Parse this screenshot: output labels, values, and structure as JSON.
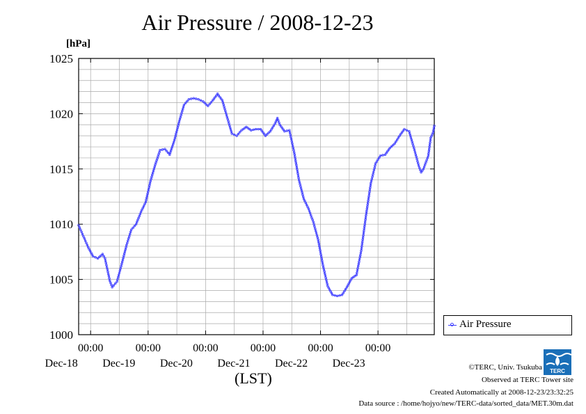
{
  "chart_data": {
    "type": "line",
    "title": "Air Pressure / 2008-12-23",
    "ylabel": "[hPa]",
    "xlabel": "(LST)",
    "ylim": [
      1000,
      1025
    ],
    "yticks": [
      "1000",
      "1005",
      "1010",
      "1015",
      "1020",
      "1025"
    ],
    "xlim": [
      "2008-12-17T19:00",
      "2008-12-23T23:30"
    ],
    "xticks": [
      {
        "time": "00:00",
        "day": "Dec-18",
        "x": "2008-12-18T00:00"
      },
      {
        "time": "00:00",
        "day": "Dec-19",
        "x": "2008-12-19T00:00"
      },
      {
        "time": "00:00",
        "day": "Dec-20",
        "x": "2008-12-20T00:00"
      },
      {
        "time": "00:00",
        "day": "Dec-21",
        "x": "2008-12-21T00:00"
      },
      {
        "time": "00:00",
        "day": "Dec-22",
        "x": "2008-12-22T00:00"
      },
      {
        "time": "00:00",
        "day": "Dec-23",
        "x": "2008-12-23T00:00"
      }
    ],
    "grid": true,
    "legend_position": "right",
    "series": [
      {
        "name": "Air Pressure",
        "color": "#3b3bff",
        "points": [
          [
            "2008-12-17T19:00",
            1009.9
          ],
          [
            "2008-12-17T21:00",
            1008.9
          ],
          [
            "2008-12-17T23:00",
            1007.9
          ],
          [
            "2008-12-18T01:00",
            1007.1
          ],
          [
            "2008-12-18T03:00",
            1006.9
          ],
          [
            "2008-12-18T05:00",
            1007.3
          ],
          [
            "2008-12-18T06:00",
            1006.9
          ],
          [
            "2008-12-18T07:00",
            1005.9
          ],
          [
            "2008-12-18T08:00",
            1004.9
          ],
          [
            "2008-12-18T09:00",
            1004.3
          ],
          [
            "2008-12-18T11:00",
            1004.8
          ],
          [
            "2008-12-18T13:00",
            1006.4
          ],
          [
            "2008-12-18T15:00",
            1008.1
          ],
          [
            "2008-12-18T17:00",
            1009.5
          ],
          [
            "2008-12-18T19:00",
            1010.0
          ],
          [
            "2008-12-18T21:00",
            1011.1
          ],
          [
            "2008-12-18T23:00",
            1012.0
          ],
          [
            "2008-12-19T01:00",
            1013.9
          ],
          [
            "2008-12-19T03:00",
            1015.4
          ],
          [
            "2008-12-19T05:00",
            1016.7
          ],
          [
            "2008-12-19T07:00",
            1016.8
          ],
          [
            "2008-12-19T09:00",
            1016.3
          ],
          [
            "2008-12-19T11:00",
            1017.6
          ],
          [
            "2008-12-19T13:00",
            1019.3
          ],
          [
            "2008-12-19T15:00",
            1020.8
          ],
          [
            "2008-12-19T17:00",
            1021.3
          ],
          [
            "2008-12-19T19:00",
            1021.4
          ],
          [
            "2008-12-19T21:00",
            1021.3
          ],
          [
            "2008-12-19T23:00",
            1021.1
          ],
          [
            "2008-12-20T01:00",
            1020.7
          ],
          [
            "2008-12-20T03:00",
            1021.2
          ],
          [
            "2008-12-20T05:00",
            1021.8
          ],
          [
            "2008-12-20T07:00",
            1021.2
          ],
          [
            "2008-12-20T09:00",
            1019.7
          ],
          [
            "2008-12-20T11:00",
            1018.2
          ],
          [
            "2008-12-20T13:00",
            1018.0
          ],
          [
            "2008-12-20T15:00",
            1018.5
          ],
          [
            "2008-12-20T17:00",
            1018.8
          ],
          [
            "2008-12-20T19:00",
            1018.5
          ],
          [
            "2008-12-20T21:00",
            1018.6
          ],
          [
            "2008-12-20T23:00",
            1018.6
          ],
          [
            "2008-12-21T01:00",
            1018.0
          ],
          [
            "2008-12-21T03:00",
            1018.4
          ],
          [
            "2008-12-21T05:00",
            1019.1
          ],
          [
            "2008-12-21T06:00",
            1019.6
          ],
          [
            "2008-12-21T07:00",
            1019.0
          ],
          [
            "2008-12-21T09:00",
            1018.4
          ],
          [
            "2008-12-21T11:00",
            1018.5
          ],
          [
            "2008-12-21T13:00",
            1016.5
          ],
          [
            "2008-12-21T15:00",
            1014.0
          ],
          [
            "2008-12-21T17:00",
            1012.3
          ],
          [
            "2008-12-21T19:00",
            1011.4
          ],
          [
            "2008-12-21T21:00",
            1010.2
          ],
          [
            "2008-12-21T23:00",
            1008.6
          ],
          [
            "2008-12-22T01:00",
            1006.3
          ],
          [
            "2008-12-22T03:00",
            1004.4
          ],
          [
            "2008-12-22T05:00",
            1003.6
          ],
          [
            "2008-12-22T07:00",
            1003.5
          ],
          [
            "2008-12-22T09:00",
            1003.6
          ],
          [
            "2008-12-22T11:00",
            1004.3
          ],
          [
            "2008-12-22T13:00",
            1005.1
          ],
          [
            "2008-12-22T15:00",
            1005.4
          ],
          [
            "2008-12-22T17:00",
            1007.6
          ],
          [
            "2008-12-22T19:00",
            1010.8
          ],
          [
            "2008-12-22T21:00",
            1013.7
          ],
          [
            "2008-12-22T23:00",
            1015.5
          ],
          [
            "2008-12-23T01:00",
            1016.2
          ],
          [
            "2008-12-23T03:00",
            1016.3
          ],
          [
            "2008-12-23T05:00",
            1016.9
          ],
          [
            "2008-12-23T07:00",
            1017.3
          ],
          [
            "2008-12-23T09:00",
            1018.0
          ],
          [
            "2008-12-23T11:00",
            1018.6
          ],
          [
            "2008-12-23T13:00",
            1018.4
          ],
          [
            "2008-12-23T15:00",
            1016.9
          ],
          [
            "2008-12-23T17:00",
            1015.3
          ],
          [
            "2008-12-23T18:00",
            1014.7
          ],
          [
            "2008-12-23T19:00",
            1015.0
          ],
          [
            "2008-12-23T21:00",
            1016.2
          ],
          [
            "2008-12-23T22:00",
            1017.8
          ],
          [
            "2008-12-23T23:00",
            1018.3
          ],
          [
            "2008-12-23T23:30",
            1018.9
          ]
        ]
      }
    ]
  },
  "credits": {
    "line1": "©TERC, Univ. Tsukuba",
    "line2": "Observed at TERC Tower site",
    "line3": "Created Automatically at 2008-12-23/23:32:25",
    "line4": "Data source : /home/hojyo/new/TERC-data/sorted_data/MET.30m.dat"
  },
  "logo": {
    "text": "TERC",
    "name": "terc-logo"
  }
}
